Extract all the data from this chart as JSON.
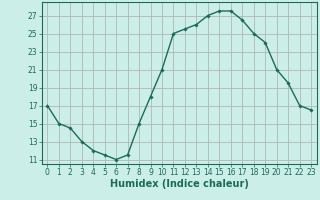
{
  "x": [
    0,
    1,
    2,
    3,
    4,
    5,
    6,
    7,
    8,
    9,
    10,
    11,
    12,
    13,
    14,
    15,
    16,
    17,
    18,
    19,
    20,
    21,
    22,
    23
  ],
  "y": [
    17,
    15,
    14.5,
    13,
    12,
    11.5,
    11,
    11.5,
    15,
    18,
    21,
    25,
    25.5,
    26,
    27,
    27.5,
    27.5,
    26.5,
    25,
    24,
    21,
    19.5,
    17,
    16.5
  ],
  "line_color": "#1a6b5a",
  "marker": "D",
  "marker_size": 1.8,
  "bg_color": "#cceee8",
  "grid_color": "#b0b8b0",
  "xlabel": "Humidex (Indice chaleur)",
  "xlim": [
    -0.5,
    23.5
  ],
  "ylim": [
    10.5,
    28.5
  ],
  "yticks": [
    11,
    13,
    15,
    17,
    19,
    21,
    23,
    25,
    27
  ],
  "xticks": [
    0,
    1,
    2,
    3,
    4,
    5,
    6,
    7,
    8,
    9,
    10,
    11,
    12,
    13,
    14,
    15,
    16,
    17,
    18,
    19,
    20,
    21,
    22,
    23
  ],
  "tick_label_fontsize": 5.5,
  "xlabel_fontsize": 7.0,
  "line_width": 1.0
}
